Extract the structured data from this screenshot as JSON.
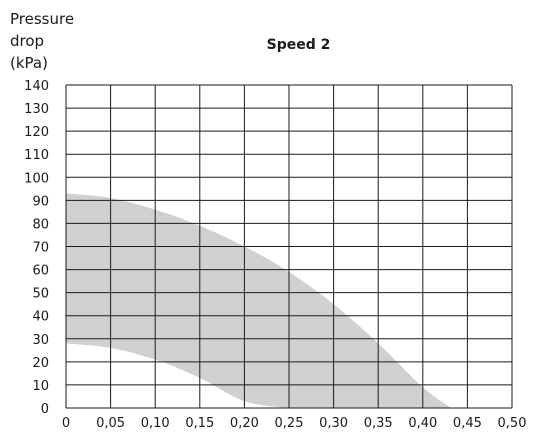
{
  "chart_data": {
    "type": "area",
    "title": "Speed 2",
    "ylabel_lines": [
      "Pressure",
      "drop",
      "(kPa)"
    ],
    "xlabel": "",
    "xlim": [
      0,
      0.5
    ],
    "ylim": [
      0,
      140
    ],
    "x_ticks": [
      "0",
      "0,05",
      "0,10",
      "0,15",
      "0,20",
      "0,25",
      "0,30",
      "0,35",
      "0,40",
      "0,45",
      "0,50"
    ],
    "y_ticks": [
      "0",
      "10",
      "20",
      "30",
      "40",
      "50",
      "60",
      "70",
      "80",
      "90",
      "100",
      "110",
      "120",
      "130",
      "140"
    ],
    "grid": true,
    "band_color": "#d0d0d0",
    "series": [
      {
        "role": "upper_boundary",
        "x": [
          0,
          0.05,
          0.1,
          0.15,
          0.2,
          0.25,
          0.3,
          0.35,
          0.4,
          0.432
        ],
        "y": [
          93,
          91,
          86,
          79,
          70,
          59,
          45,
          28,
          9,
          0
        ]
      },
      {
        "role": "lower_boundary",
        "x": [
          0,
          0.05,
          0.1,
          0.15,
          0.2,
          0.25,
          0.275
        ],
        "y": [
          28,
          26,
          21,
          13,
          3,
          0,
          0
        ]
      }
    ]
  }
}
